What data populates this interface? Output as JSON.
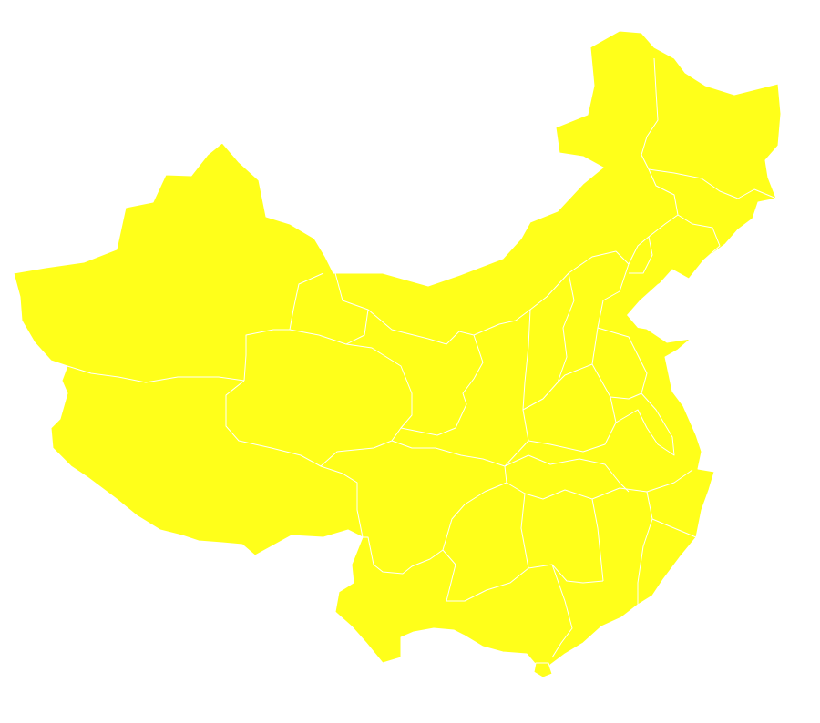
{
  "map": {
    "type": "choropleth",
    "region": "China provinces",
    "colors": {
      "region_fill": "#ffff1a",
      "boundary": "#ffffff",
      "background": "#ffffff"
    },
    "labels": []
  }
}
